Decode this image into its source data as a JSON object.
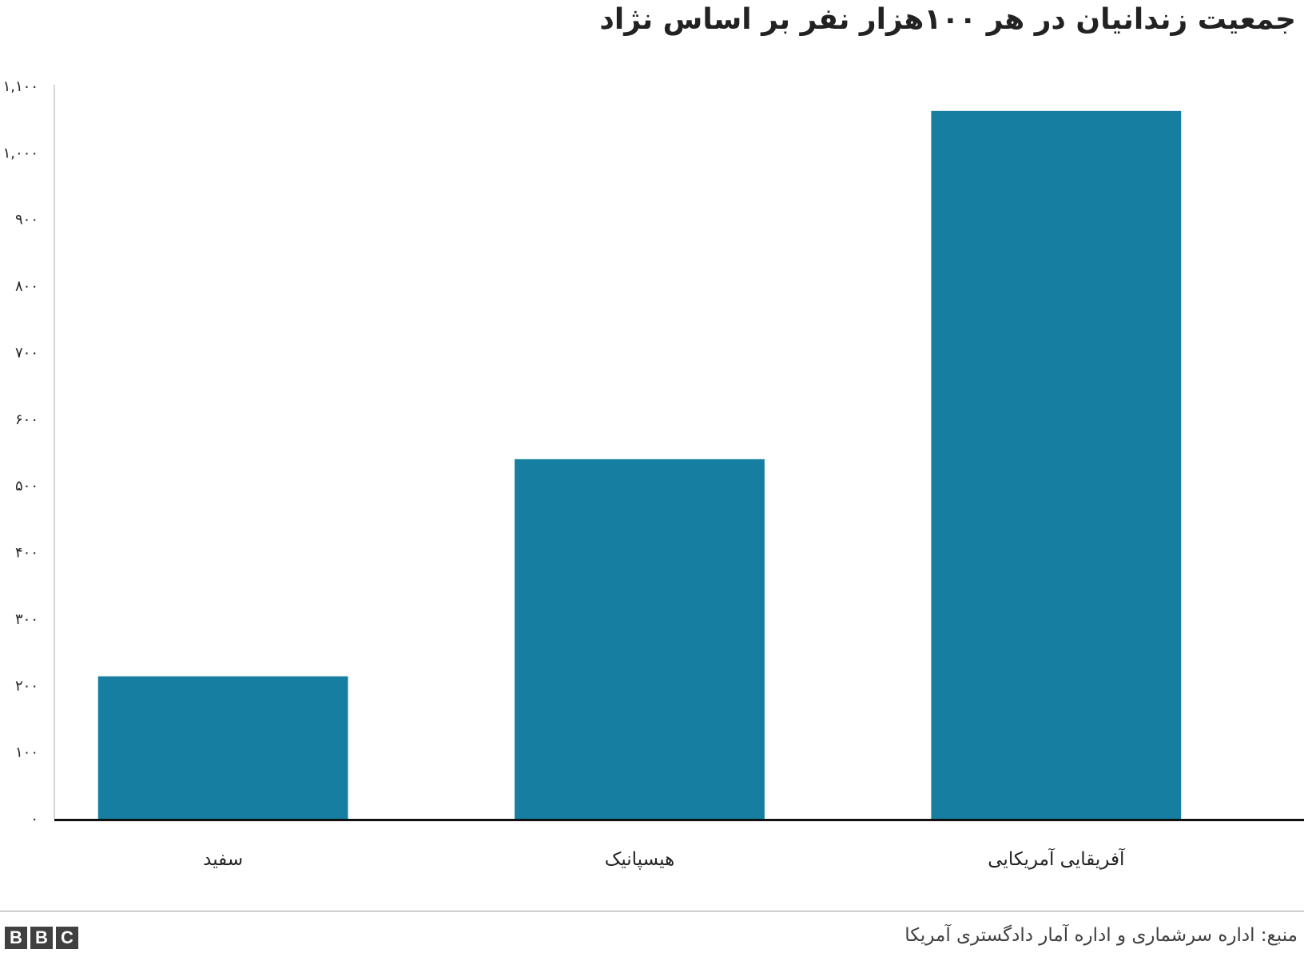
{
  "title": "جمعیت زندانیان در هر ۱۰۰هزار نفر بر اساس نژاد",
  "source": "منبع: اداره سرشماری و اداره آمار دادگستری آمریکا",
  "logo": [
    "B",
    "B",
    "C"
  ],
  "colors": {
    "bar": "#167fa1",
    "axis": "#111111",
    "tick": "#c8c8c8",
    "text": "#222222"
  },
  "chart_data": {
    "type": "bar",
    "title": "جمعیت زندانیان در هر ۱۰۰هزار نفر بر اساس نژاد",
    "categories": [
      "سفید",
      "هیسپانیک",
      "آفریقایی آمریکایی"
    ],
    "values": [
      214,
      540,
      1063
    ],
    "ylim": [
      0,
      1100
    ],
    "yticks": [
      0,
      100,
      200,
      300,
      400,
      500,
      600,
      700,
      800,
      900,
      1000,
      1100
    ],
    "ytick_labels": [
      "۰",
      "۱۰۰",
      "۲۰۰",
      "۳۰۰",
      "۴۰۰",
      "۵۰۰",
      "۶۰۰",
      "۷۰۰",
      "۸۰۰",
      "۹۰۰",
      "۱,۰۰۰",
      "۱,۱۰۰"
    ],
    "xlabel": "",
    "ylabel": "",
    "grid": false,
    "legend": "none"
  }
}
